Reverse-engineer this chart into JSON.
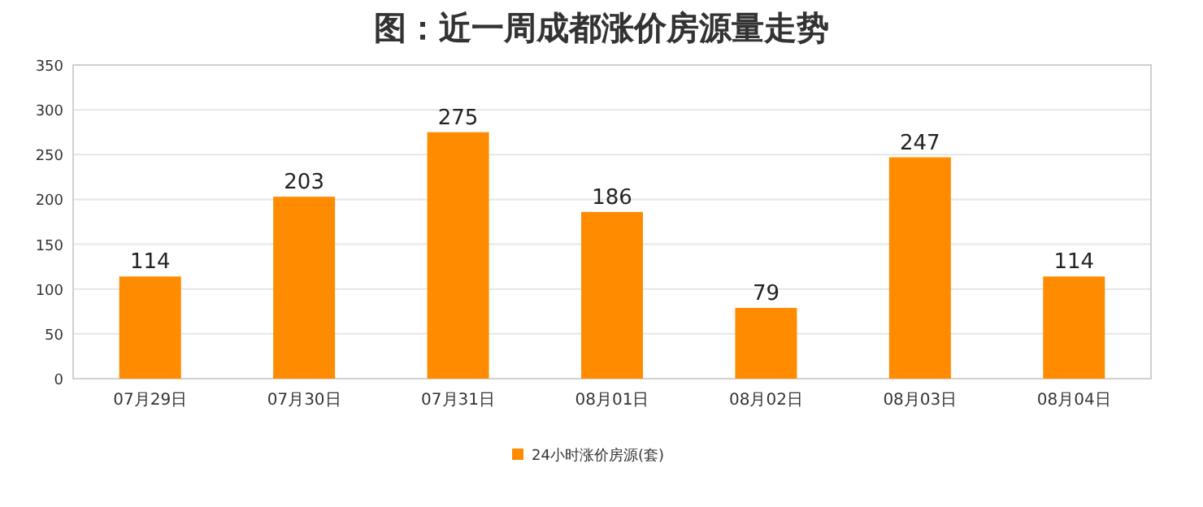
{
  "chart_data": {
    "type": "bar",
    "title": "图：近一周成都涨价房源量走势",
    "categories": [
      "07月29日",
      "07月30日",
      "07月31日",
      "08月01日",
      "08月02日",
      "08月03日",
      "08月04日"
    ],
    "series": [
      {
        "name": "24小时涨价房源(套)",
        "color": "#ff8c00",
        "values": [
          114,
          203,
          275,
          186,
          79,
          247,
          114
        ]
      }
    ],
    "ylim": [
      0,
      350
    ],
    "yticks": [
      0,
      50,
      100,
      150,
      200,
      250,
      300,
      350
    ],
    "grid": "y",
    "legend": "bottom",
    "data_labels": true
  }
}
